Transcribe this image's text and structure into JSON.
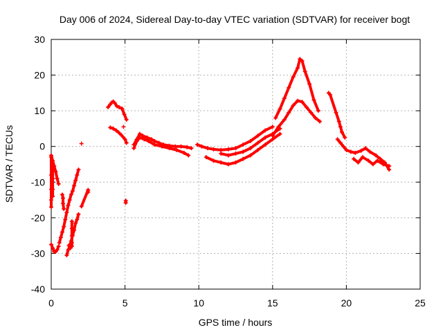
{
  "chart_data": {
    "type": "scatter",
    "title": "Day 006 of 2024, Sidereal Day-to-day VTEC variation (SDTVAR) for receiver bogt",
    "xlabel": "GPS time / hours",
    "ylabel": "SDTVAR / TECUs",
    "xlim": [
      0,
      25
    ],
    "ylim": [
      -40,
      30
    ],
    "xticks": [
      0,
      5,
      10,
      15,
      20,
      25
    ],
    "yticks": [
      -40,
      -30,
      -20,
      -10,
      0,
      10,
      20,
      30
    ],
    "grid": true,
    "marker": "+",
    "color": "#ff0000",
    "series": [
      {
        "name": "early-band-top",
        "x": [
          0.0,
          0.1,
          0.2,
          0.3,
          0.4,
          0.5
        ],
        "y": [
          -2.5,
          -4,
          -5.5,
          -7,
          -9,
          -10.5
        ]
      },
      {
        "name": "early-band-bottom",
        "x": [
          0.0,
          0.1,
          0.2,
          0.3,
          0.4,
          0.5
        ],
        "y": [
          -27.5,
          -28.5,
          -29.5,
          -29.5,
          -29,
          -28
        ]
      },
      {
        "name": "early-band-vertical",
        "x": [
          0.0,
          0.0,
          0.0,
          0.0,
          0.0
        ],
        "y": [
          -3,
          -8,
          -12,
          -15,
          -17
        ]
      },
      {
        "name": "early-band-vertical-2",
        "x": [
          0.1,
          0.1,
          0.1,
          0.1
        ],
        "y": [
          -5,
          -9,
          -12,
          -14
        ]
      },
      {
        "name": "rise-1",
        "x": [
          0.55,
          0.65,
          0.75,
          0.85,
          0.95,
          1.05,
          1.15,
          1.25,
          1.35,
          1.45,
          1.55,
          1.65,
          1.75,
          1.85
        ],
        "y": [
          -27,
          -25.5,
          -24,
          -22.5,
          -20.5,
          -18.5,
          -16.5,
          -15,
          -13.5,
          -12.5,
          -11,
          -9.5,
          -8,
          -6.5
        ]
      },
      {
        "name": "rise-2",
        "x": [
          1.05,
          1.15,
          1.25,
          1.35,
          1.45,
          1.55,
          1.65,
          1.75,
          1.85
        ],
        "y": [
          -30.5,
          -29,
          -28,
          -26.5,
          -25,
          -23.5,
          -21.5,
          -20.5,
          -19
        ]
      },
      {
        "name": "rise-2-vertical",
        "x": [
          1.4,
          1.4,
          1.4,
          1.4,
          1.4
        ],
        "y": [
          -21,
          -23,
          -25,
          -27,
          -28
        ]
      },
      {
        "name": "isolated-early",
        "x": [
          0.75,
          0.8,
          0.8,
          0.85,
          2.05,
          2.05,
          2.5,
          2.5,
          1.2,
          1.3
        ],
        "y": [
          -13.5,
          -14.5,
          -16,
          -17.5,
          0.8,
          -16.8,
          -12.2,
          -12.8,
          -27.7,
          -28.5
        ]
      },
      {
        "name": "cluster-4h-upper",
        "x": [
          3.85,
          4.0,
          4.1,
          4.2,
          4.3,
          4.45,
          4.6,
          4.8,
          4.95,
          5.1
        ],
        "y": [
          11,
          11.8,
          12.3,
          12.6,
          12.2,
          11.3,
          11,
          10.6,
          9,
          7.5
        ]
      },
      {
        "name": "cluster-4h-lower",
        "x": [
          4.0,
          4.2,
          4.4,
          4.55,
          4.75,
          5.0,
          5.1
        ],
        "y": [
          5.3,
          5.0,
          4.5,
          4.0,
          3.2,
          2.0,
          1.0
        ]
      },
      {
        "name": "isolated-5h",
        "x": [
          5.05,
          5.05,
          4.9
        ],
        "y": [
          -15.2,
          -15.8,
          5.5
        ]
      },
      {
        "name": "main-5-10",
        "x": [
          5.6,
          5.8,
          6.0,
          6.2,
          6.5,
          6.8,
          7.0,
          7.3,
          7.6,
          8.0,
          8.4,
          8.8,
          9.2,
          9.5
        ],
        "y": [
          0.5,
          2.0,
          3.5,
          3.0,
          2.5,
          2.0,
          1.5,
          1.0,
          0.5,
          0.2,
          0.0,
          0.0,
          -0.2,
          -0.5
        ]
      },
      {
        "name": "main-5-10-lower",
        "x": [
          5.6,
          5.8,
          6.0,
          6.3,
          6.6,
          7.0,
          7.5,
          8.0,
          8.5,
          9.0,
          9.3
        ],
        "y": [
          -0.5,
          1.5,
          2.5,
          2.0,
          1.5,
          0.5,
          0.0,
          -0.5,
          -1.0,
          -1.8,
          -2.5
        ]
      },
      {
        "name": "mid-band-upper",
        "x": [
          9.9,
          10.2,
          10.6,
          11.0,
          11.5,
          12.0,
          12.5,
          13.0,
          13.5,
          14.0,
          14.5,
          15.0
        ],
        "y": [
          0.5,
          0.0,
          -0.5,
          -0.8,
          -1.0,
          -0.8,
          -0.5,
          0.5,
          1.5,
          3.0,
          4.5,
          5.5
        ]
      },
      {
        "name": "mid-band-lower",
        "x": [
          10.5,
          11.0,
          11.5,
          12.0,
          12.5,
          13.0,
          13.5,
          14.0,
          14.5,
          15.0,
          15.5
        ],
        "y": [
          -3.0,
          -4.0,
          -4.5,
          -5.0,
          -4.5,
          -3.5,
          -2.5,
          -1.0,
          0.5,
          2.0,
          3.5
        ]
      },
      {
        "name": "mid-band-middle",
        "x": [
          11.5,
          12.0,
          12.5,
          13.0,
          13.5,
          14.0,
          14.5,
          15.0,
          15.5
        ],
        "y": [
          -2.0,
          -2.5,
          -2.0,
          -1.5,
          -0.5,
          1.0,
          2.5,
          3.5,
          5.0
        ]
      },
      {
        "name": "peak-upper",
        "x": [
          15.2,
          15.5,
          15.8,
          16.1,
          16.4,
          16.7,
          16.85,
          17.0,
          17.2,
          17.5,
          17.8,
          18.1
        ],
        "y": [
          8.0,
          10.5,
          13.5,
          16.5,
          19.5,
          22.0,
          24.5,
          24.0,
          21.0,
          17.5,
          13.0,
          10.0
        ]
      },
      {
        "name": "peak-lower",
        "x": [
          15.0,
          15.4,
          15.8,
          16.1,
          16.4,
          16.7,
          17.0,
          17.3,
          17.6,
          17.9,
          18.2
        ],
        "y": [
          3.0,
          5.5,
          7.5,
          9.5,
          11.5,
          12.8,
          12.5,
          11.0,
          9.5,
          8.0,
          7.0
        ]
      },
      {
        "name": "post-peak",
        "x": [
          18.8,
          18.9,
          19.3,
          19.5,
          19.6,
          19.7,
          19.9
        ],
        "y": [
          15.0,
          14.5,
          9.5,
          7.0,
          5.5,
          4.0,
          2.5
        ]
      },
      {
        "name": "tail",
        "x": [
          19.4,
          19.6,
          19.8,
          20.0,
          20.3,
          20.6,
          21.0,
          21.3,
          21.6,
          22.0,
          22.3,
          22.6,
          22.9
        ],
        "y": [
          2.0,
          1.0,
          0.0,
          -1.0,
          -1.5,
          -1.8,
          -1.2,
          -0.5,
          -1.5,
          -2.5,
          -3.5,
          -4.5,
          -6.5
        ]
      },
      {
        "name": "tail-lower",
        "x": [
          20.5,
          20.8,
          21.1,
          21.5,
          21.8,
          22.1,
          22.5,
          22.9
        ],
        "y": [
          -3.5,
          -4.5,
          -3.0,
          -4.0,
          -5.0,
          -4.0,
          -5.0,
          -5.5
        ]
      }
    ]
  }
}
